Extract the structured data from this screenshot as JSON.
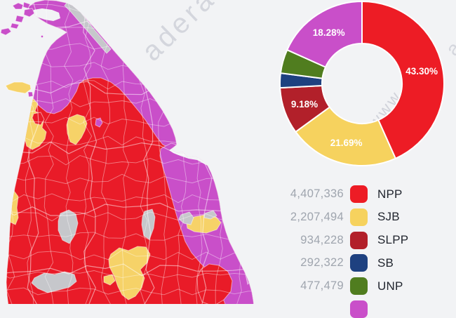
{
  "page": {
    "background": "#F2F3F5"
  },
  "watermark": {
    "map_text": "adera",
    "chart_text": "www.",
    "edge_text": "ad"
  },
  "palette": {
    "npp_red": "#E91B28",
    "slpp_dark_red": "#B2202A",
    "sb_navy": "#1E4180",
    "unp_green": "#507D1F",
    "sjb_yellow": "#F6D268",
    "magenta": "#C94FC9",
    "magenta_light": "#DD8EDB",
    "no_result_gray": "#C6C7CB",
    "sea": "#F2F3F5",
    "boundary_line": "rgba(255,255,255,0.48)"
  },
  "chart_data": [
    {
      "type": "donut",
      "direction": "clockwise",
      "start_angle_deg": 0,
      "slices": [
        {
          "party": "NPP",
          "pct": 43.3,
          "label": "43.30%",
          "color": "#ED1C25"
        },
        {
          "party": "SJB",
          "pct": 21.69,
          "label": "21.69%",
          "color": "#F6D25E"
        },
        {
          "party": "SLPP",
          "pct": 9.18,
          "label": "9.18%",
          "color": "#B2202A"
        },
        {
          "party": "SB",
          "pct": 2.87,
          "label": "",
          "color": "#1E4180"
        },
        {
          "party": "UNP",
          "pct": 4.69,
          "label": "",
          "color": "#507D1F"
        },
        {
          "party": "",
          "pct": 18.28,
          "label": "18.28%",
          "color": "#C94FC9"
        }
      ]
    },
    {
      "type": "choropleth",
      "region": "Sri Lanka polling divisions (northern two-thirds visible)",
      "fill_meaning": {
        "red": "NPP win",
        "yellow": "SJB win",
        "magenta": "north / east coast party win",
        "gray": "no result / other"
      }
    }
  ],
  "legend": {
    "rows": [
      {
        "value": "4,407,336",
        "label": "NPP",
        "color": "#ED1C25"
      },
      {
        "value": "2,207,494",
        "label": "SJB",
        "color": "#F6D25E"
      },
      {
        "value": "934,228",
        "label": "SLPP",
        "color": "#B2202A"
      },
      {
        "value": "292,322",
        "label": "SB",
        "color": "#1E4180"
      },
      {
        "value": "477,479",
        "label": "UNP",
        "color": "#507D1F"
      },
      {
        "value": "",
        "label": "",
        "color": "#C94FC9"
      }
    ]
  }
}
